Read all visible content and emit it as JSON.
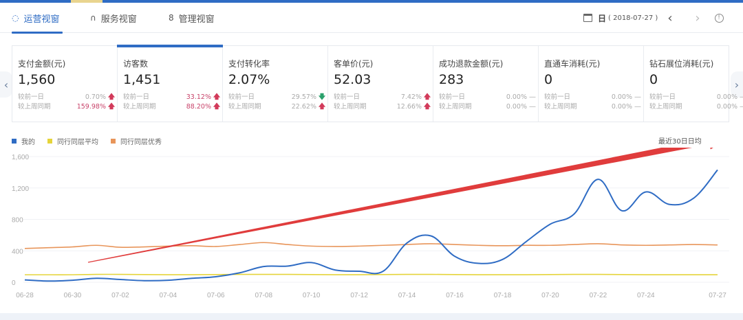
{
  "top_bar": {
    "accent": "#2f6cc4",
    "highlight": "#e9d48f"
  },
  "nav": {
    "tabs": [
      {
        "label": "运营视窗",
        "icon": "refresh-circle-icon",
        "glyph": "◌",
        "active": true
      },
      {
        "label": "服务视窗",
        "icon": "headset-icon",
        "glyph": "∩",
        "active": false
      },
      {
        "label": "管理视窗",
        "icon": "person-icon",
        "glyph": "8",
        "active": false
      }
    ],
    "date": {
      "icon": "calendar-icon",
      "granularity": "日",
      "value": "( 2018-07-27 )"
    },
    "prev_glyph": "‹",
    "next_glyph": "›",
    "info_glyph": "!"
  },
  "cards": [
    {
      "label": "支付金额(元)",
      "value": "1,560",
      "active": false,
      "rows": [
        {
          "label": "较前一日",
          "pct": "0.70%",
          "dir": "up",
          "highlight": false
        },
        {
          "label": "较上周同期",
          "pct": "159.98%",
          "dir": "up",
          "highlight": true
        }
      ]
    },
    {
      "label": "访客数",
      "value": "1,451",
      "active": true,
      "rows": [
        {
          "label": "较前一日",
          "pct": "33.12%",
          "dir": "up",
          "highlight": true
        },
        {
          "label": "较上周同期",
          "pct": "88.20%",
          "dir": "up",
          "highlight": true
        }
      ]
    },
    {
      "label": "支付转化率",
      "value": "2.07%",
      "active": false,
      "rows": [
        {
          "label": "较前一日",
          "pct": "29.57%",
          "dir": "down",
          "highlight": false
        },
        {
          "label": "较上周同期",
          "pct": "22.62%",
          "dir": "up",
          "highlight": false
        }
      ]
    },
    {
      "label": "客单价(元)",
      "value": "52.03",
      "active": false,
      "rows": [
        {
          "label": "较前一日",
          "pct": "7.42%",
          "dir": "up",
          "highlight": false
        },
        {
          "label": "较上周同期",
          "pct": "12.66%",
          "dir": "up",
          "highlight": false
        }
      ]
    },
    {
      "label": "成功退款金额(元)",
      "value": "283",
      "active": false,
      "rows": [
        {
          "label": "较前一日",
          "pct": "0.00%",
          "dir": "flat",
          "highlight": false
        },
        {
          "label": "较上周同期",
          "pct": "0.00%",
          "dir": "flat",
          "highlight": false
        }
      ]
    },
    {
      "label": "直通车消耗(元)",
      "value": "0",
      "active": false,
      "rows": [
        {
          "label": "较前一日",
          "pct": "0.00%",
          "dir": "flat",
          "highlight": false
        },
        {
          "label": "较上周同期",
          "pct": "0.00%",
          "dir": "flat",
          "highlight": false
        }
      ]
    },
    {
      "label": "钻石展位消耗(元)",
      "value": "0",
      "active": false,
      "rows": [
        {
          "label": "较前一日",
          "pct": "0.00%",
          "dir": "flat",
          "highlight": false
        },
        {
          "label": "较上周同期",
          "pct": "0.00%",
          "dir": "flat",
          "highlight": false
        }
      ]
    }
  ],
  "cards_nav": {
    "prev_glyph": "‹",
    "next_glyph": "›"
  },
  "glyphs": {
    "up": "🡅",
    "down": "🡇",
    "flat": "—"
  },
  "legend": [
    {
      "label": "我的",
      "color": "#2f6cc4"
    },
    {
      "label": "同行同层平均",
      "color": "#e5d43a"
    },
    {
      "label": "同行同层优秀",
      "color": "#e8955a"
    }
  ],
  "period_label": "最近30日日均",
  "annotation": {
    "type": "red-arrow",
    "color": "#e03c3c",
    "from": [
      128,
      382
    ],
    "to": [
      1060,
      200
    ]
  },
  "chart_data": {
    "type": "line",
    "title": "",
    "xlabel": "",
    "ylabel": "",
    "ylim": [
      0,
      1600
    ],
    "yticks": [
      0,
      400,
      800,
      1200,
      1600
    ],
    "ytick_labels": [
      "0",
      "400",
      "800",
      "1,200",
      "1,600"
    ],
    "xtick_labels": [
      "06-28",
      "06-30",
      "07-02",
      "07-04",
      "07-06",
      "07-08",
      "07-10",
      "07-12",
      "07-14",
      "07-16",
      "07-18",
      "07-20",
      "07-22",
      "07-24",
      "07-27"
    ],
    "grid": true,
    "legend_position": "top-left",
    "x": [
      "06-28",
      "06-29",
      "06-30",
      "07-01",
      "07-02",
      "07-03",
      "07-04",
      "07-05",
      "07-06",
      "07-07",
      "07-08",
      "07-09",
      "07-10",
      "07-11",
      "07-12",
      "07-13",
      "07-14",
      "07-15",
      "07-16",
      "07-17",
      "07-18",
      "07-19",
      "07-20",
      "07-21",
      "07-22",
      "07-23",
      "07-24",
      "07-25",
      "07-26",
      "07-27"
    ],
    "series": [
      {
        "name": "我的",
        "color": "#2f6cc4",
        "values": [
          30,
          15,
          25,
          50,
          35,
          20,
          25,
          50,
          70,
          120,
          200,
          205,
          250,
          155,
          140,
          140,
          500,
          590,
          330,
          240,
          290,
          520,
          740,
          870,
          1310,
          910,
          1150,
          990,
          1070,
          1430
        ]
      },
      {
        "name": "同行同层平均",
        "color": "#e5d43a",
        "values": [
          95,
          95,
          95,
          100,
          100,
          98,
          96,
          96,
          98,
          100,
          100,
          100,
          98,
          96,
          96,
          98,
          100,
          100,
          98,
          96,
          96,
          96,
          98,
          100,
          100,
          98,
          96,
          96,
          96,
          96
        ]
      },
      {
        "name": "同行同层优秀",
        "color": "#e8955a",
        "values": [
          430,
          440,
          450,
          470,
          445,
          450,
          460,
          465,
          455,
          480,
          505,
          480,
          460,
          455,
          460,
          470,
          480,
          490,
          480,
          470,
          465,
          470,
          470,
          480,
          490,
          475,
          470,
          475,
          480,
          475
        ]
      }
    ]
  }
}
